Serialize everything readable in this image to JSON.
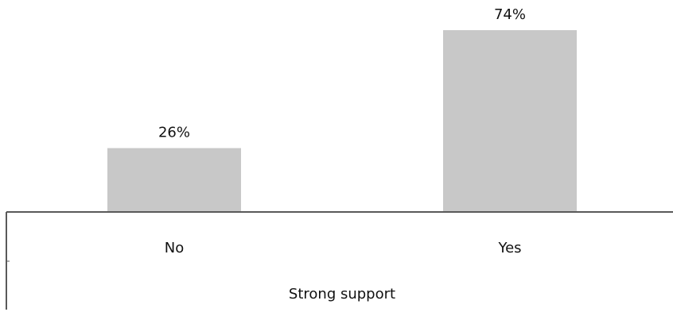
{
  "chart_data": {
    "type": "bar",
    "categories": [
      "No",
      "Yes"
    ],
    "values": [
      26,
      74
    ],
    "value_labels": [
      "26%",
      "74%"
    ],
    "xlabel": "Strong support",
    "ylabel": "",
    "ylim": [
      0,
      100
    ],
    "unit": "%",
    "grid": false,
    "legend": "none",
    "colors": {
      "bar": "#c8c8c8",
      "axis": "#595959",
      "text": "#111111"
    }
  }
}
